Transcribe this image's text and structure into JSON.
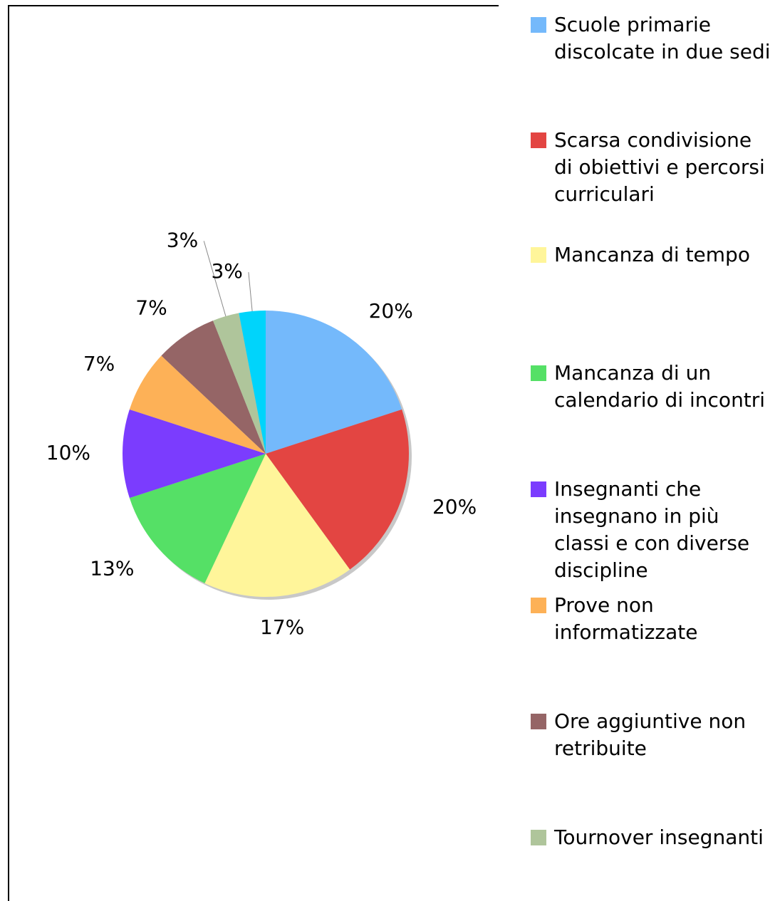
{
  "chart_data": {
    "type": "pie",
    "categories": [
      "Scuole primarie discolcate in due sedi",
      "Scarsa condivisione di obiettivi e percorsi curriculari",
      "Mancanza di tempo",
      "Mancanza di un calendario di incontri",
      "Insegnanti che insegnano in più classi e con diverse discipline",
      "Prove non informatizzate",
      "Ore aggiuntive non retribuite",
      "Tournover insegnanti",
      null
    ],
    "values": [
      20,
      20,
      17,
      13,
      10,
      7,
      7,
      3,
      3
    ],
    "value_labels": [
      "20%",
      "20%",
      "17%",
      "13%",
      "10%",
      "7%",
      "7%",
      "3%",
      "3%"
    ],
    "colors": [
      "#74b9fb",
      "#e34542",
      "#fff59a",
      "#55e066",
      "#7b3cfe",
      "#fdb157",
      "#956566",
      "#afc59b",
      "#00d4fb"
    ]
  }
}
